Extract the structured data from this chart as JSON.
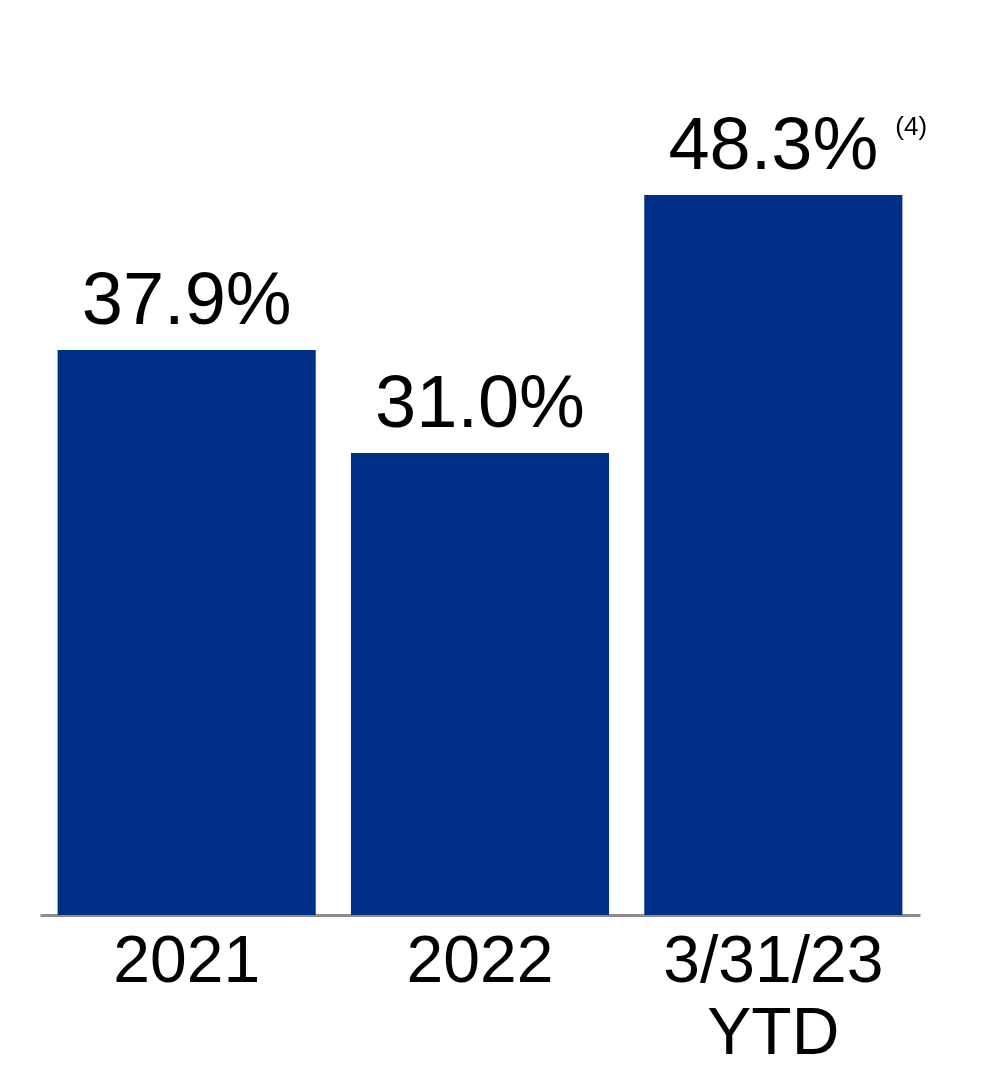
{
  "chart_data": {
    "type": "bar",
    "categories": [
      "2021",
      "2022",
      "3/31/23 YTD"
    ],
    "values": [
      37.9,
      31.0,
      48.3
    ],
    "value_labels": [
      "37.9%",
      "31.0%",
      "48.3%"
    ],
    "color": "#002f87",
    "annotations": [
      "(4)"
    ],
    "grid": false
  }
}
